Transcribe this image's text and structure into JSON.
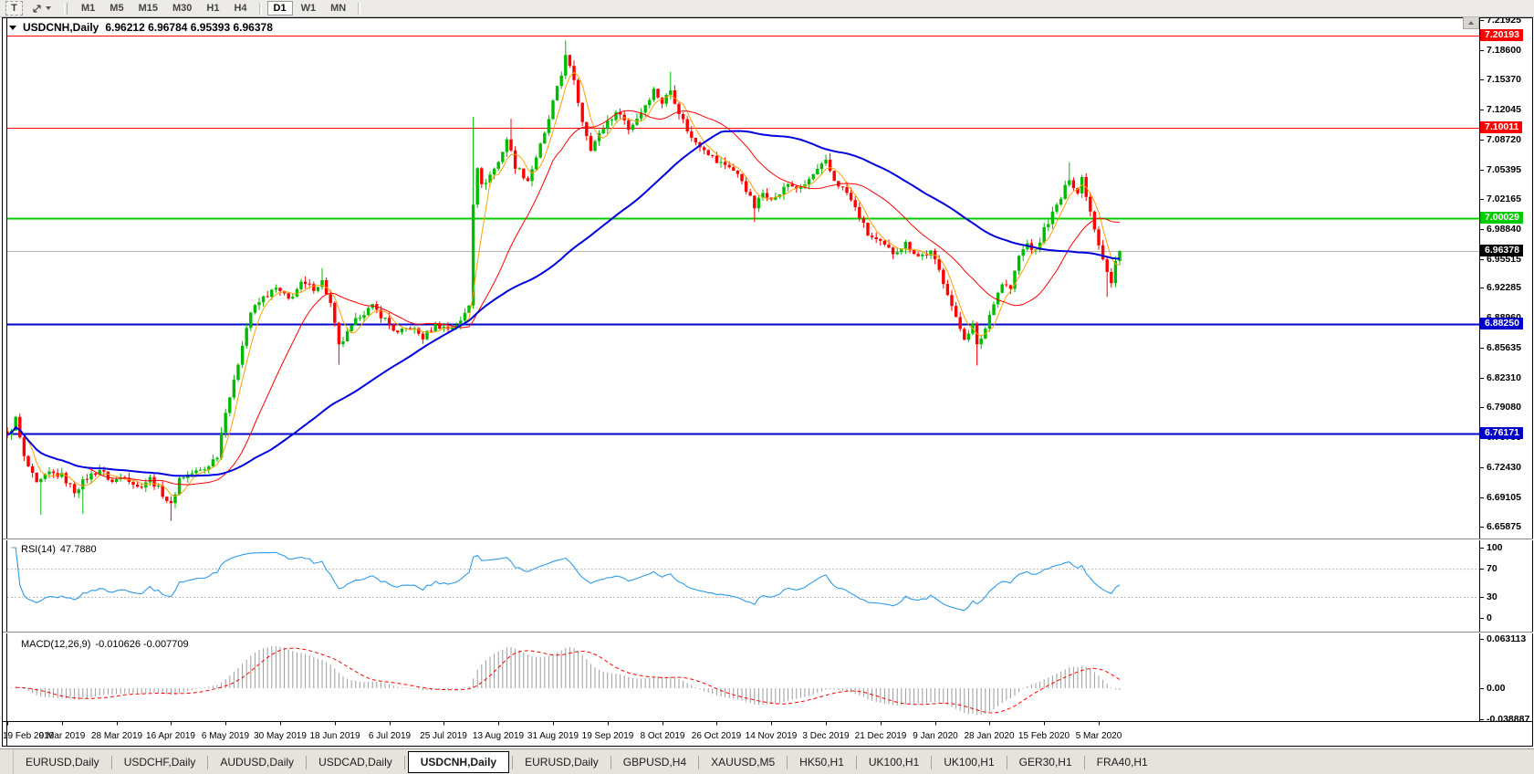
{
  "toolbar": {
    "text_tool_label": "T",
    "timeframes": [
      "M1",
      "M5",
      "M15",
      "M30",
      "H1",
      "H4",
      "D1",
      "W1",
      "MN"
    ],
    "active_timeframe": "D1"
  },
  "chart": {
    "symbol_period": "USDCNH,Daily",
    "ohlc_text": "6.96212 6.96784 6.95393 6.96378"
  },
  "rsi": {
    "name": "RSI(14)",
    "value": "47.7880",
    "ticks": [
      "100",
      "70",
      "30",
      "0"
    ]
  },
  "macd": {
    "name": "MACD(12,26,9)",
    "values": "-0.010626 -0.007709",
    "ticks": [
      "0.063113",
      "0.00",
      "-0.038887"
    ]
  },
  "dates": [
    "19 Feb 2019",
    "9 Mar 2019",
    "28 Mar 2019",
    "16 Apr 2019",
    "6 May 2019",
    "30 May 2019",
    "18 Jun 2019",
    "6 Jul 2019",
    "25 Jul 2019",
    "13 Aug 2019",
    "31 Aug 2019",
    "19 Sep 2019",
    "8 Oct 2019",
    "26 Oct 2019",
    "14 Nov 2019",
    "3 Dec 2019",
    "21 Dec 2019",
    "9 Jan 2020",
    "28 Jan 2020",
    "15 Feb 2020",
    "5 Mar 2020"
  ],
  "tabs": {
    "active_index": 4,
    "items": [
      "EURUSD,Daily",
      "USDCHF,Daily",
      "AUDUSD,Daily",
      "USDCAD,Daily",
      "USDCNH,Daily",
      "EURUSD,Daily",
      "GBPUSD,H4",
      "XAUUSD,M5",
      "HK50,H1",
      "UK100,H1",
      "UK100,H1",
      "GER30,H1",
      "FRA40,H1"
    ]
  },
  "chart_data": {
    "type": "candlestick",
    "symbol": "USDCNH",
    "timeframe": "Daily",
    "current_bar": {
      "open": 6.96212,
      "high": 6.96784,
      "low": 6.95393,
      "close": 6.96378
    },
    "axis": {
      "max": 7.21925,
      "min": 6.65875,
      "ticks": [
        7.21925,
        7.186,
        7.1537,
        7.12045,
        7.0872,
        7.05395,
        7.02165,
        6.9884,
        6.95515,
        6.92285,
        6.8896,
        6.85635,
        6.8231,
        6.7908,
        6.75755,
        6.7243,
        6.69105,
        6.65875
      ]
    },
    "levels": [
      {
        "price": 7.20193,
        "color": "#FF0000",
        "width": 1
      },
      {
        "price": 7.10011,
        "color": "#FF0000",
        "width": 1
      },
      {
        "price": 7.00029,
        "color": "#00CC00",
        "width": 2
      },
      {
        "price": 6.8825,
        "color": "#0000CC",
        "width": 2
      },
      {
        "price": 6.76171,
        "color": "#0000CC",
        "width": 2
      }
    ],
    "current_price": {
      "price": 6.96378,
      "line_color": "#B4B4B4",
      "badge_color": "#000000"
    },
    "up_color": "#00BB00",
    "down_color": "#FF0000",
    "moving_averages": [
      {
        "period": 5,
        "color": "#FFA000",
        "width": 1
      },
      {
        "period": 20,
        "color": "#FF0000",
        "width": 1
      },
      {
        "period": 60,
        "color": "#0000E0",
        "width": 2
      }
    ],
    "rsi": {
      "period": 14,
      "color": "#2E9BE8",
      "overbought": 70,
      "oversold": 30,
      "current": 47.788
    },
    "macd": {
      "fast": 12,
      "slow": 26,
      "signal": 9,
      "hist_color": "#9C9C9C",
      "signal_color": "#FF0000",
      "current_macd": -0.010626,
      "current_signal": -0.007709,
      "scale_max": 0.063113,
      "scale_min": -0.038887
    },
    "candle_count": 266,
    "noise": 0.007,
    "wick": 0.006,
    "close_keyframes": [
      [
        0,
        6.758
      ],
      [
        2,
        6.778
      ],
      [
        4,
        6.735
      ],
      [
        7,
        6.705
      ],
      [
        10,
        6.718
      ],
      [
        13,
        6.715
      ],
      [
        16,
        6.698
      ],
      [
        19,
        6.713
      ],
      [
        22,
        6.722
      ],
      [
        25,
        6.708
      ],
      [
        28,
        6.716
      ],
      [
        31,
        6.702
      ],
      [
        34,
        6.712
      ],
      [
        37,
        6.695
      ],
      [
        39,
        6.682
      ],
      [
        41,
        6.712
      ],
      [
        44,
        6.718
      ],
      [
        47,
        6.722
      ],
      [
        50,
        6.738
      ],
      [
        52,
        6.788
      ],
      [
        54,
        6.818
      ],
      [
        56,
        6.862
      ],
      [
        58,
        6.896
      ],
      [
        61,
        6.912
      ],
      [
        64,
        6.922
      ],
      [
        67,
        6.91
      ],
      [
        70,
        6.927
      ],
      [
        73,
        6.923
      ],
      [
        75,
        6.93
      ],
      [
        77,
        6.905
      ],
      [
        79,
        6.858
      ],
      [
        81,
        6.872
      ],
      [
        84,
        6.893
      ],
      [
        87,
        6.902
      ],
      [
        90,
        6.888
      ],
      [
        93,
        6.872
      ],
      [
        96,
        6.88
      ],
      [
        99,
        6.868
      ],
      [
        102,
        6.882
      ],
      [
        105,
        6.878
      ],
      [
        108,
        6.885
      ],
      [
        110,
        6.905
      ],
      [
        111,
        7.018
      ],
      [
        112,
        7.058
      ],
      [
        113,
        7.035
      ],
      [
        115,
        7.048
      ],
      [
        117,
        7.062
      ],
      [
        119,
        7.088
      ],
      [
        121,
        7.058
      ],
      [
        124,
        7.042
      ],
      [
        126,
        7.068
      ],
      [
        128,
        7.092
      ],
      [
        130,
        7.128
      ],
      [
        132,
        7.158
      ],
      [
        133,
        7.183
      ],
      [
        135,
        7.15
      ],
      [
        137,
        7.108
      ],
      [
        139,
        7.078
      ],
      [
        141,
        7.092
      ],
      [
        143,
        7.108
      ],
      [
        146,
        7.118
      ],
      [
        148,
        7.098
      ],
      [
        151,
        7.118
      ],
      [
        154,
        7.142
      ],
      [
        156,
        7.128
      ],
      [
        158,
        7.142
      ],
      [
        160,
        7.118
      ],
      [
        163,
        7.088
      ],
      [
        166,
        7.078
      ],
      [
        169,
        7.062
      ],
      [
        172,
        7.058
      ],
      [
        175,
        7.042
      ],
      [
        178,
        7.012
      ],
      [
        180,
        7.028
      ],
      [
        183,
        7.022
      ],
      [
        186,
        7.038
      ],
      [
        189,
        7.032
      ],
      [
        192,
        7.048
      ],
      [
        195,
        7.062
      ],
      [
        197,
        7.042
      ],
      [
        200,
        7.028
      ],
      [
        203,
        7.002
      ],
      [
        205,
        6.982
      ],
      [
        208,
        6.972
      ],
      [
        211,
        6.962
      ],
      [
        214,
        6.972
      ],
      [
        217,
        6.958
      ],
      [
        220,
        6.962
      ],
      [
        222,
        6.942
      ],
      [
        224,
        6.918
      ],
      [
        226,
        6.888
      ],
      [
        228,
        6.868
      ],
      [
        230,
        6.882
      ],
      [
        231,
        6.858
      ],
      [
        233,
        6.878
      ],
      [
        235,
        6.908
      ],
      [
        237,
        6.928
      ],
      [
        239,
        6.922
      ],
      [
        241,
        6.958
      ],
      [
        243,
        6.972
      ],
      [
        245,
        6.962
      ],
      [
        247,
        6.988
      ],
      [
        249,
        7.005
      ],
      [
        251,
        7.022
      ],
      [
        253,
        7.045
      ],
      [
        255,
        7.028
      ],
      [
        256,
        7.045
      ],
      [
        258,
        7.008
      ],
      [
        260,
        6.972
      ],
      [
        262,
        6.942
      ],
      [
        263,
        6.928
      ],
      [
        264,
        6.952
      ],
      [
        265,
        6.96378
      ]
    ],
    "wick_spikes": [
      [
        8,
        "low",
        6.672
      ],
      [
        18,
        "low",
        6.673
      ],
      [
        39,
        "low",
        6.665
      ],
      [
        75,
        "high",
        6.945
      ],
      [
        79,
        "low",
        6.838
      ],
      [
        111,
        "high",
        7.112
      ],
      [
        120,
        "high",
        7.11
      ],
      [
        133,
        "high",
        7.1966
      ],
      [
        158,
        "high",
        7.162
      ],
      [
        178,
        "low",
        6.996
      ],
      [
        196,
        "high",
        7.072
      ],
      [
        231,
        "low",
        6.837
      ],
      [
        253,
        "high",
        7.062
      ],
      [
        262,
        "low",
        6.913
      ]
    ]
  }
}
